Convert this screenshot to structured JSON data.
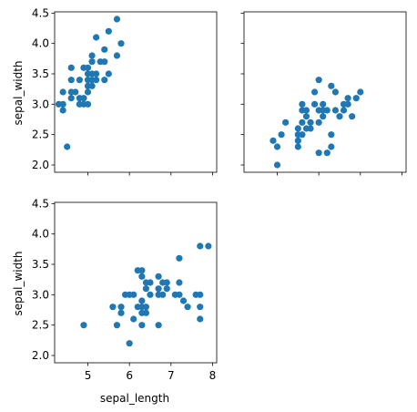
{
  "chart_data": [
    {
      "type": "scatter",
      "xlabel": "",
      "ylabel": "sepal_width",
      "xlim": [
        4.2,
        8.1
      ],
      "ylim": [
        1.88,
        4.52
      ],
      "yticks": [
        "2.0",
        "2.5",
        "3.0",
        "3.5",
        "4.0",
        "4.5"
      ],
      "color": "#1f77b4",
      "points": [
        [
          4.3,
          3.0
        ],
        [
          4.4,
          2.9
        ],
        [
          4.4,
          3.0
        ],
        [
          4.4,
          3.2
        ],
        [
          4.5,
          2.3
        ],
        [
          4.6,
          3.1
        ],
        [
          4.6,
          3.2
        ],
        [
          4.6,
          3.4
        ],
        [
          4.6,
          3.6
        ],
        [
          4.7,
          3.2
        ],
        [
          4.8,
          3.0
        ],
        [
          4.8,
          3.1
        ],
        [
          4.8,
          3.4
        ],
        [
          4.9,
          3.0
        ],
        [
          4.9,
          3.1
        ],
        [
          4.9,
          3.6
        ],
        [
          5.0,
          3.0
        ],
        [
          5.0,
          3.2
        ],
        [
          5.0,
          3.3
        ],
        [
          5.0,
          3.4
        ],
        [
          5.0,
          3.5
        ],
        [
          5.0,
          3.6
        ],
        [
          5.1,
          3.3
        ],
        [
          5.1,
          3.4
        ],
        [
          5.1,
          3.5
        ],
        [
          5.1,
          3.7
        ],
        [
          5.1,
          3.8
        ],
        [
          5.2,
          3.4
        ],
        [
          5.2,
          3.5
        ],
        [
          5.2,
          4.1
        ],
        [
          5.3,
          3.7
        ],
        [
          5.4,
          3.4
        ],
        [
          5.4,
          3.7
        ],
        [
          5.4,
          3.9
        ],
        [
          5.5,
          3.5
        ],
        [
          5.5,
          4.2
        ],
        [
          5.7,
          3.8
        ],
        [
          5.7,
          4.4
        ],
        [
          5.8,
          4.0
        ]
      ]
    },
    {
      "type": "scatter",
      "xlabel": "",
      "ylabel": "",
      "xlim": [
        4.2,
        8.1
      ],
      "ylim": [
        1.88,
        4.52
      ],
      "color": "#1f77b4",
      "points": [
        [
          4.9,
          2.4
        ],
        [
          5.0,
          2.0
        ],
        [
          5.0,
          2.3
        ],
        [
          5.1,
          2.5
        ],
        [
          5.2,
          2.7
        ],
        [
          5.5,
          2.3
        ],
        [
          5.5,
          2.4
        ],
        [
          5.5,
          2.5
        ],
        [
          5.5,
          2.6
        ],
        [
          5.6,
          2.5
        ],
        [
          5.6,
          2.7
        ],
        [
          5.6,
          2.9
        ],
        [
          5.6,
          3.0
        ],
        [
          5.7,
          2.6
        ],
        [
          5.7,
          2.8
        ],
        [
          5.7,
          2.9
        ],
        [
          5.8,
          2.6
        ],
        [
          5.8,
          2.7
        ],
        [
          5.9,
          3.0
        ],
        [
          5.9,
          3.2
        ],
        [
          6.0,
          2.2
        ],
        [
          6.0,
          2.7
        ],
        [
          6.0,
          2.9
        ],
        [
          6.0,
          3.4
        ],
        [
          6.1,
          2.8
        ],
        [
          6.1,
          2.9
        ],
        [
          6.1,
          3.0
        ],
        [
          6.2,
          2.2
        ],
        [
          6.2,
          2.9
        ],
        [
          6.3,
          2.3
        ],
        [
          6.3,
          2.5
        ],
        [
          6.3,
          3.3
        ],
        [
          6.4,
          2.9
        ],
        [
          6.4,
          3.2
        ],
        [
          6.5,
          2.8
        ],
        [
          6.6,
          2.9
        ],
        [
          6.6,
          3.0
        ],
        [
          6.7,
          3.0
        ],
        [
          6.7,
          3.1
        ],
        [
          6.8,
          2.8
        ],
        [
          6.9,
          3.1
        ],
        [
          7.0,
          3.2
        ]
      ]
    },
    {
      "type": "scatter",
      "xlabel": "sepal_length",
      "ylabel": "sepal_width",
      "xlim": [
        4.2,
        8.1
      ],
      "ylim": [
        1.88,
        4.52
      ],
      "xticks": [
        "5",
        "6",
        "7",
        "8"
      ],
      "yticks": [
        "2.0",
        "2.5",
        "3.0",
        "3.5",
        "4.0",
        "4.5"
      ],
      "color": "#1f77b4",
      "points": [
        [
          4.9,
          2.5
        ],
        [
          5.6,
          2.8
        ],
        [
          5.7,
          2.5
        ],
        [
          5.8,
          2.7
        ],
        [
          5.8,
          2.8
        ],
        [
          5.9,
          3.0
        ],
        [
          6.0,
          2.2
        ],
        [
          6.0,
          3.0
        ],
        [
          6.1,
          2.6
        ],
        [
          6.1,
          3.0
        ],
        [
          6.2,
          2.8
        ],
        [
          6.2,
          3.4
        ],
        [
          6.3,
          2.5
        ],
        [
          6.3,
          2.7
        ],
        [
          6.3,
          2.8
        ],
        [
          6.3,
          2.9
        ],
        [
          6.3,
          3.3
        ],
        [
          6.3,
          3.4
        ],
        [
          6.4,
          2.7
        ],
        [
          6.4,
          2.8
        ],
        [
          6.4,
          3.1
        ],
        [
          6.4,
          3.2
        ],
        [
          6.5,
          3.0
        ],
        [
          6.5,
          3.2
        ],
        [
          6.7,
          2.5
        ],
        [
          6.7,
          3.0
        ],
        [
          6.7,
          3.1
        ],
        [
          6.7,
          3.3
        ],
        [
          6.8,
          3.0
        ],
        [
          6.8,
          3.2
        ],
        [
          6.9,
          3.1
        ],
        [
          6.9,
          3.2
        ],
        [
          7.1,
          3.0
        ],
        [
          7.2,
          3.0
        ],
        [
          7.2,
          3.2
        ],
        [
          7.2,
          3.6
        ],
        [
          7.3,
          2.9
        ],
        [
          7.4,
          2.8
        ],
        [
          7.6,
          3.0
        ],
        [
          7.7,
          2.6
        ],
        [
          7.7,
          2.8
        ],
        [
          7.7,
          3.0
        ],
        [
          7.7,
          3.8
        ],
        [
          7.9,
          3.8
        ]
      ]
    }
  ]
}
